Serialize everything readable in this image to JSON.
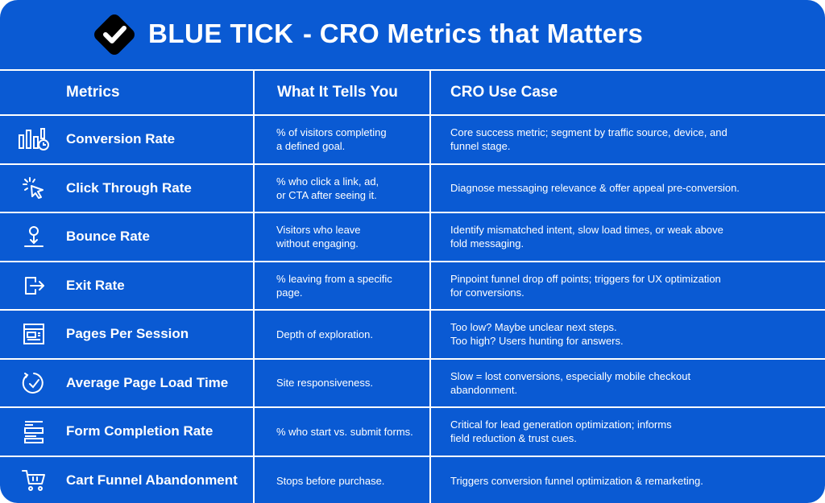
{
  "brand": "BLUE TICK",
  "title": "- CRO Metrics that Matters",
  "colors": {
    "background": "#0a5ad3",
    "text": "#ffffff",
    "logo_bg": "#000000"
  },
  "table": {
    "headers": [
      "Metrics",
      "What It Tells You",
      "CRO Use Case"
    ],
    "rows": [
      {
        "icon": "bar-chart-clock-icon",
        "metric": "Conversion Rate",
        "tells": "% of visitors completing\na defined goal.",
        "use_case": "Core success metric; segment by traffic source, device, and\nfunnel stage."
      },
      {
        "icon": "cursor-click-icon",
        "metric": "Click Through Rate",
        "tells": "% who click a link, ad,\nor CTA after seeing it.",
        "use_case": "Diagnose messaging relevance & offer appeal pre-conversion."
      },
      {
        "icon": "download-arrow-icon",
        "metric": "Bounce Rate",
        "tells": "Visitors who leave\nwithout engaging.",
        "use_case": "Identify mismatched intent, slow load times, or weak above\nfold messaging."
      },
      {
        "icon": "exit-icon",
        "metric": "Exit Rate",
        "tells": "% leaving from a specific\npage.",
        "use_case": "Pinpoint funnel drop off points; triggers for UX optimization\nfor conversions."
      },
      {
        "icon": "browser-window-icon",
        "metric": "Pages Per Session",
        "tells": "Depth of exploration.",
        "use_case": "Too low? Maybe unclear next steps.\nToo high? Users hunting for answers."
      },
      {
        "icon": "timer-check-icon",
        "metric": "Average Page Load Time",
        "tells": "Site responsiveness.",
        "use_case": "Slow = lost conversions, especially mobile checkout\nabandonment."
      },
      {
        "icon": "form-list-icon",
        "metric": "Form Completion Rate",
        "tells": "% who start vs. submit forms.",
        "use_case": "Critical for lead generation optimization; informs\nfield reduction & trust cues."
      },
      {
        "icon": "shopping-cart-icon",
        "metric": "Cart Funnel Abandonment",
        "tells": "Stops before purchase.",
        "use_case": "Triggers conversion funnel optimization & remarketing."
      }
    ]
  }
}
